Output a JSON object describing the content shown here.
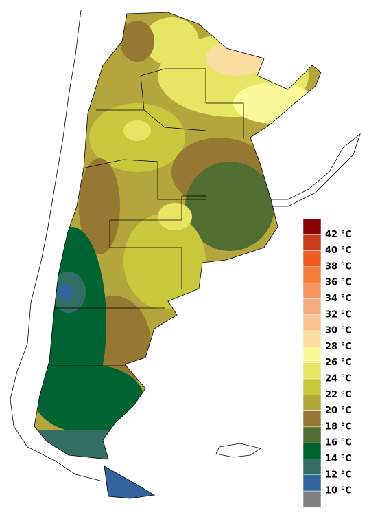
{
  "legend": {
    "labels": [
      "42 °C",
      "40 °C",
      "38 °C",
      "36 °C",
      "34 °C",
      "32 °C",
      "30 °C",
      "28 °C",
      "26 °C",
      "24 °C",
      "22 °C",
      "20 °C",
      "18 °C",
      "16 °C",
      "14 °C",
      "12 °C",
      "10 °C"
    ],
    "colors": [
      "#8b0000",
      "#c83c1e",
      "#f05a23",
      "#f57d3c",
      "#f59664",
      "#f5aa82",
      "#fac396",
      "#fadca0",
      "#fafa9b",
      "#e6e664",
      "#c8c83c",
      "#b4a53c",
      "#967832",
      "#506e32",
      "#006432",
      "#326e64",
      "#32649b",
      "#808080"
    ]
  }
}
